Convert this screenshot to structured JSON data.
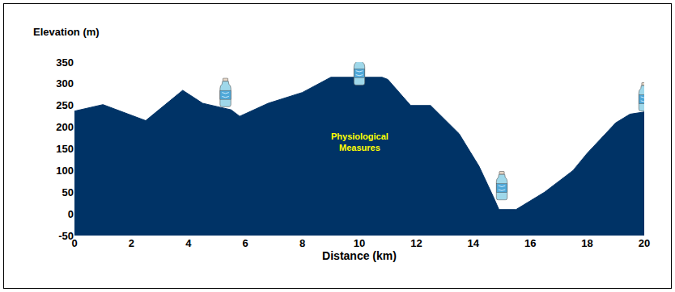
{
  "chart_data": {
    "type": "area",
    "x_label": "Distance (km)",
    "y_label": "Elevation (m)",
    "color": "#003366",
    "x": [
      0,
      1,
      2.5,
      3.8,
      4.5,
      5.5,
      5.8,
      6.8,
      8,
      9,
      10.8,
      11,
      11.8,
      12.5,
      13.5,
      14.2,
      14.7,
      14.9,
      15.5,
      16.5,
      17.5,
      18,
      19,
      19.5,
      20
    ],
    "values": [
      237,
      252,
      215,
      285,
      255,
      240,
      225,
      255,
      280,
      315,
      315,
      310,
      250,
      250,
      185,
      110,
      40,
      10,
      10,
      50,
      100,
      140,
      210,
      230,
      235
    ],
    "xlim": [
      0,
      20
    ],
    "xticks": [
      0,
      2,
      4,
      6,
      8,
      10,
      12,
      14,
      16,
      18,
      20
    ],
    "ylim": [
      -50,
      350
    ],
    "yticks": [
      -50,
      0,
      50,
      100,
      150,
      200,
      250,
      300,
      350
    ],
    "grid": false,
    "annotations": [
      {
        "text": "Physiological\nMeasures",
        "x": 10,
        "y": 165
      }
    ],
    "water_stations": [
      {
        "x": 5.3,
        "y": 280
      },
      {
        "x": 10,
        "y": 330
      },
      {
        "x": 15,
        "y": 65
      },
      {
        "x": 20,
        "y": 270
      }
    ]
  }
}
